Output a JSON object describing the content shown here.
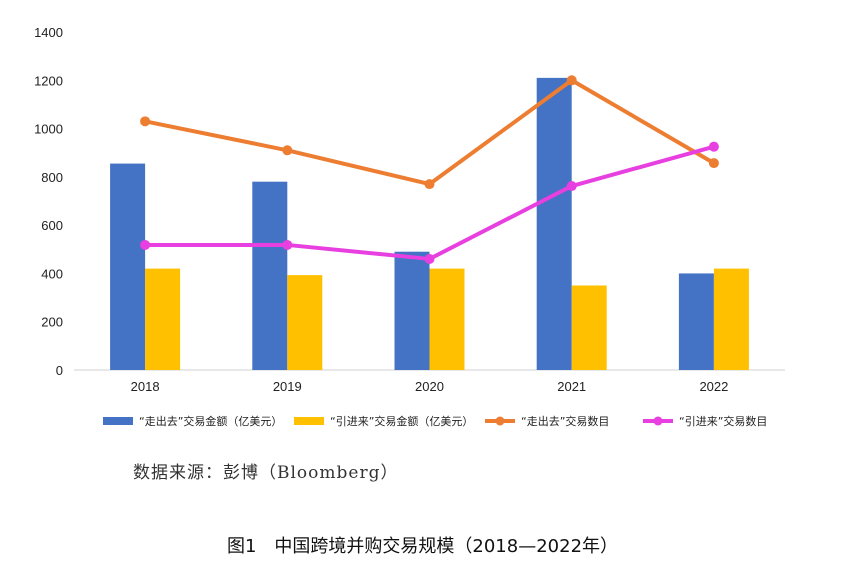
{
  "chart_data": {
    "type": "bar+line",
    "categories": [
      "2018",
      "2019",
      "2020",
      "2021",
      "2022"
    ],
    "ylim": [
      0,
      1400
    ],
    "yticks": [
      0,
      200,
      400,
      600,
      800,
      1000,
      1200,
      1400
    ],
    "grid": false,
    "legend_position": "bottom",
    "series": [
      {
        "name": "“走出去”交易金额（亿美元）",
        "type": "bar",
        "color": "#4472C4",
        "values": [
          855,
          780,
          490,
          1210,
          400
        ]
      },
      {
        "name": "“引进来”交易金额（亿美元）",
        "type": "bar",
        "color": "#FFC000",
        "values": [
          420,
          393,
          420,
          350,
          420
        ]
      },
      {
        "name": "“走出去”交易数目",
        "type": "line",
        "color": "#ED7D31",
        "values": [
          1030,
          910,
          770,
          1200,
          857
        ]
      },
      {
        "name": "“引进来”交易数目",
        "type": "line",
        "color": "#E83FE0",
        "values": [
          518,
          518,
          460,
          762,
          925
        ]
      }
    ]
  },
  "source_text": "数据来源：彭博（Bloomberg）",
  "caption_text": "图1　中国跨境并购交易规模（2018—2022年）"
}
